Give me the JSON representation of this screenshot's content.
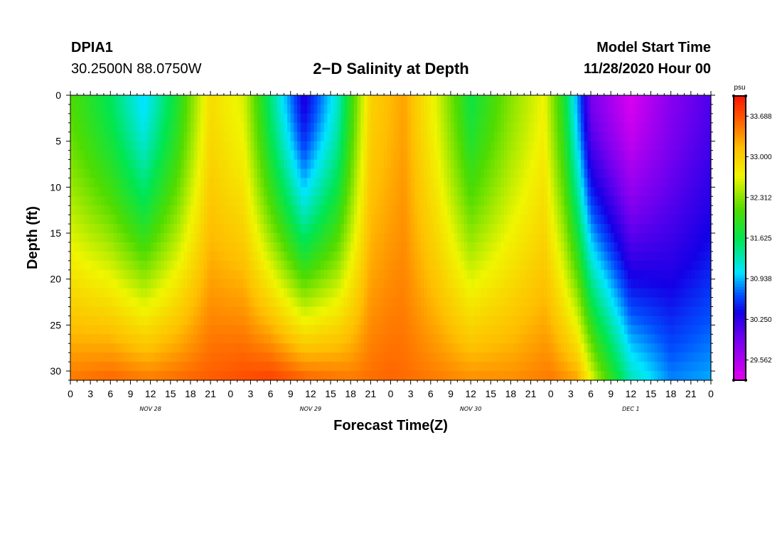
{
  "header": {
    "station_id": "DPIA1",
    "coordinates": "30.2500N 88.0750W",
    "title": "2−D Salinity at Depth",
    "model_start_label": "Model Start Time",
    "model_start_value": "11/28/2020 Hour 00"
  },
  "chart_data": {
    "type": "heatmap",
    "title": "2−D Salinity at Depth",
    "xlabel": "Forecast Time(Z)",
    "ylabel": "Depth (ft)",
    "x_range_hours": [
      0,
      96
    ],
    "y_range_ft": [
      0,
      31
    ],
    "x_tick_labels": [
      "0",
      "3",
      "6",
      "9",
      "12",
      "15",
      "18",
      "21",
      "0",
      "3",
      "6",
      "9",
      "12",
      "15",
      "18",
      "21",
      "0",
      "3",
      "6",
      "9",
      "12",
      "15",
      "18",
      "21",
      "0",
      "3",
      "6",
      "9",
      "12",
      "15",
      "18",
      "21",
      "0"
    ],
    "y_ticks": [
      0,
      5,
      10,
      15,
      20,
      25,
      30
    ],
    "y_tick_labels": [
      "0",
      "5",
      "10",
      "15",
      "20",
      "25",
      "30"
    ],
    "date_labels": [
      {
        "text": "NOV 28",
        "hour": 12
      },
      {
        "text": "NOV 29",
        "hour": 36
      },
      {
        "text": "NOV 30",
        "hour": 60
      },
      {
        "text": "DEC 1",
        "hour": 84
      }
    ],
    "colorbar": {
      "unit": "psu",
      "min": 29.22,
      "max": 34.03,
      "tick_values": [
        33.688,
        33.0,
        32.312,
        31.625,
        30.938,
        30.25,
        29.562
      ],
      "tick_labels": [
        "33.688",
        "33.000",
        "32.312",
        "31.625",
        "30.938",
        "30.250",
        "29.562"
      ]
    },
    "surface_salinity_psu": [
      {
        "hour": 0,
        "value": 32.1
      },
      {
        "hour": 6,
        "value": 31.6
      },
      {
        "hour": 11,
        "value": 31.0
      },
      {
        "hour": 16,
        "value": 31.8
      },
      {
        "hour": 21,
        "value": 32.9
      },
      {
        "hour": 26,
        "value": 32.6
      },
      {
        "hour": 30,
        "value": 31.5
      },
      {
        "hour": 35,
        "value": 30.3
      },
      {
        "hour": 40,
        "value": 31.2
      },
      {
        "hour": 45,
        "value": 33.0
      },
      {
        "hour": 50,
        "value": 33.3
      },
      {
        "hour": 55,
        "value": 32.6
      },
      {
        "hour": 60,
        "value": 31.7
      },
      {
        "hour": 66,
        "value": 32.3
      },
      {
        "hour": 71,
        "value": 32.7
      },
      {
        "hour": 74,
        "value": 31.8
      },
      {
        "hour": 78,
        "value": 29.9
      },
      {
        "hour": 84,
        "value": 29.3
      },
      {
        "hour": 90,
        "value": 29.8
      },
      {
        "hour": 96,
        "value": 30.1
      }
    ],
    "bottom_salinity_psu": [
      {
        "hour": 0,
        "value": 33.5
      },
      {
        "hour": 6,
        "value": 33.6
      },
      {
        "hour": 12,
        "value": 33.5
      },
      {
        "hour": 18,
        "value": 33.6
      },
      {
        "hour": 24,
        "value": 33.7
      },
      {
        "hour": 30,
        "value": 33.8
      },
      {
        "hour": 36,
        "value": 33.6
      },
      {
        "hour": 42,
        "value": 33.5
      },
      {
        "hour": 48,
        "value": 33.6
      },
      {
        "hour": 54,
        "value": 33.5
      },
      {
        "hour": 60,
        "value": 33.4
      },
      {
        "hour": 66,
        "value": 33.4
      },
      {
        "hour": 72,
        "value": 33.5
      },
      {
        "hour": 76,
        "value": 33.3
      },
      {
        "hour": 79,
        "value": 32.4
      },
      {
        "hour": 84,
        "value": 31.3
      },
      {
        "hour": 90,
        "value": 30.8
      },
      {
        "hour": 96,
        "value": 30.9
      }
    ]
  }
}
